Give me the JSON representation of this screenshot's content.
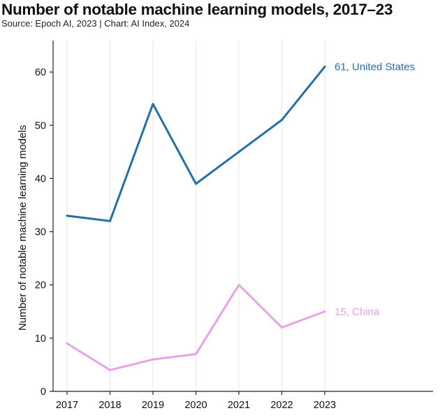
{
  "title": "Number of notable machine learning models, 2017–23",
  "source": "Source: Epoch AI, 2023 | Chart: AI Index, 2024",
  "colors": {
    "grid": "#e6e6e6",
    "axis": "#222222"
  },
  "chart_data": {
    "type": "line",
    "x": [
      2017,
      2018,
      2019,
      2020,
      2021,
      2022,
      2023
    ],
    "xticks": [
      "2017",
      "2018",
      "2019",
      "2020",
      "2021",
      "2022",
      "2023"
    ],
    "ylabel": "Number of notable machine learning models",
    "ylim": [
      0,
      65
    ],
    "yticks": [
      0,
      10,
      20,
      30,
      40,
      50,
      60
    ],
    "grid": "vertical",
    "legend": "end-of-line labels",
    "series": [
      {
        "name": "United States",
        "end_label": "61, United States",
        "color": "#2370a6",
        "values": [
          33,
          32,
          54,
          39,
          45,
          51,
          61
        ]
      },
      {
        "name": "China",
        "end_label": "15, China",
        "color": "#e8a2e6",
        "values": [
          9,
          4,
          6,
          7,
          20,
          12,
          15
        ]
      }
    ]
  }
}
